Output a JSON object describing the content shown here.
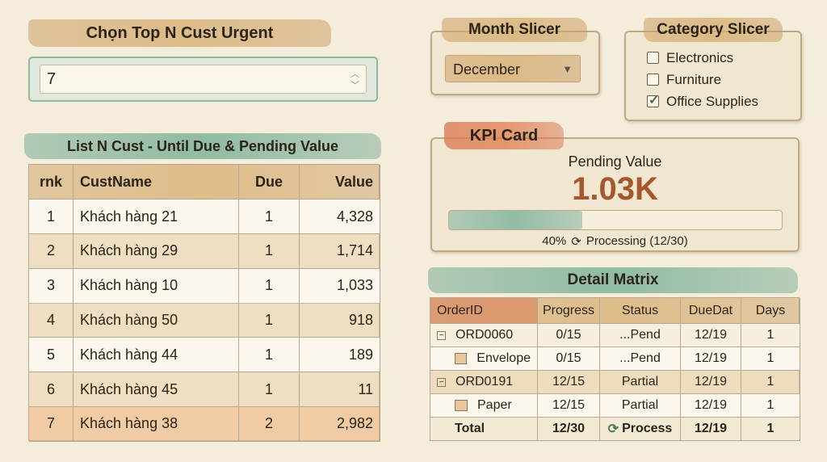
{
  "top_n": {
    "title": "Chọn Top N Cust Urgent",
    "value": "7"
  },
  "list": {
    "title": "List N Cust - Until Due & Pending Value",
    "columns": [
      "rnk",
      "CustName",
      "Due",
      "Value"
    ],
    "rows": [
      [
        "1",
        "Khách hàng 21",
        "1",
        "4,328"
      ],
      [
        "2",
        "Khách hàng 29",
        "1",
        "1,714"
      ],
      [
        "3",
        "Khách hàng 10",
        "1",
        "1,033"
      ],
      [
        "4",
        "Khách hàng 50",
        "1",
        "918"
      ],
      [
        "5",
        "Khách hàng 44",
        "1",
        "189"
      ],
      [
        "6",
        "Khách hàng 45",
        "1",
        "11"
      ],
      [
        "7",
        "Khách hàng 38",
        "2",
        "2,982"
      ]
    ]
  },
  "month_slicer": {
    "title": "Month Slicer",
    "selected": "December"
  },
  "category_slicer": {
    "title": "Category Slicer",
    "items": [
      {
        "label": "Electronics",
        "checked": false
      },
      {
        "label": "Furniture",
        "checked": false
      },
      {
        "label": "Office Supplies",
        "checked": true
      }
    ]
  },
  "kpi": {
    "title": "KPI Card",
    "label": "Pending Value",
    "value": "1.03K",
    "progress": 40,
    "progress_label": "40%",
    "status": "Processing (12/30)"
  },
  "matrix": {
    "title": "Detail Matrix",
    "columns": [
      "OrderID",
      "Progress",
      "Status",
      "DueDat",
      "Days"
    ],
    "rows": [
      {
        "level": 0,
        "cells": [
          "ORD0060",
          "0/15",
          "...Pend",
          "12/19",
          "1"
        ]
      },
      {
        "level": 1,
        "cells": [
          "Envelope",
          "0/15",
          "...Pend",
          "12/19",
          "1"
        ]
      },
      {
        "level": 0,
        "cells": [
          "ORD0191",
          "12/15",
          "Partial",
          "12/19",
          "1"
        ]
      },
      {
        "level": 1,
        "cells": [
          "Paper",
          "12/15",
          "Partial",
          "12/19",
          "1"
        ]
      }
    ],
    "total": [
      "Total",
      "12/30",
      "Process",
      "12/19",
      "1"
    ]
  }
}
